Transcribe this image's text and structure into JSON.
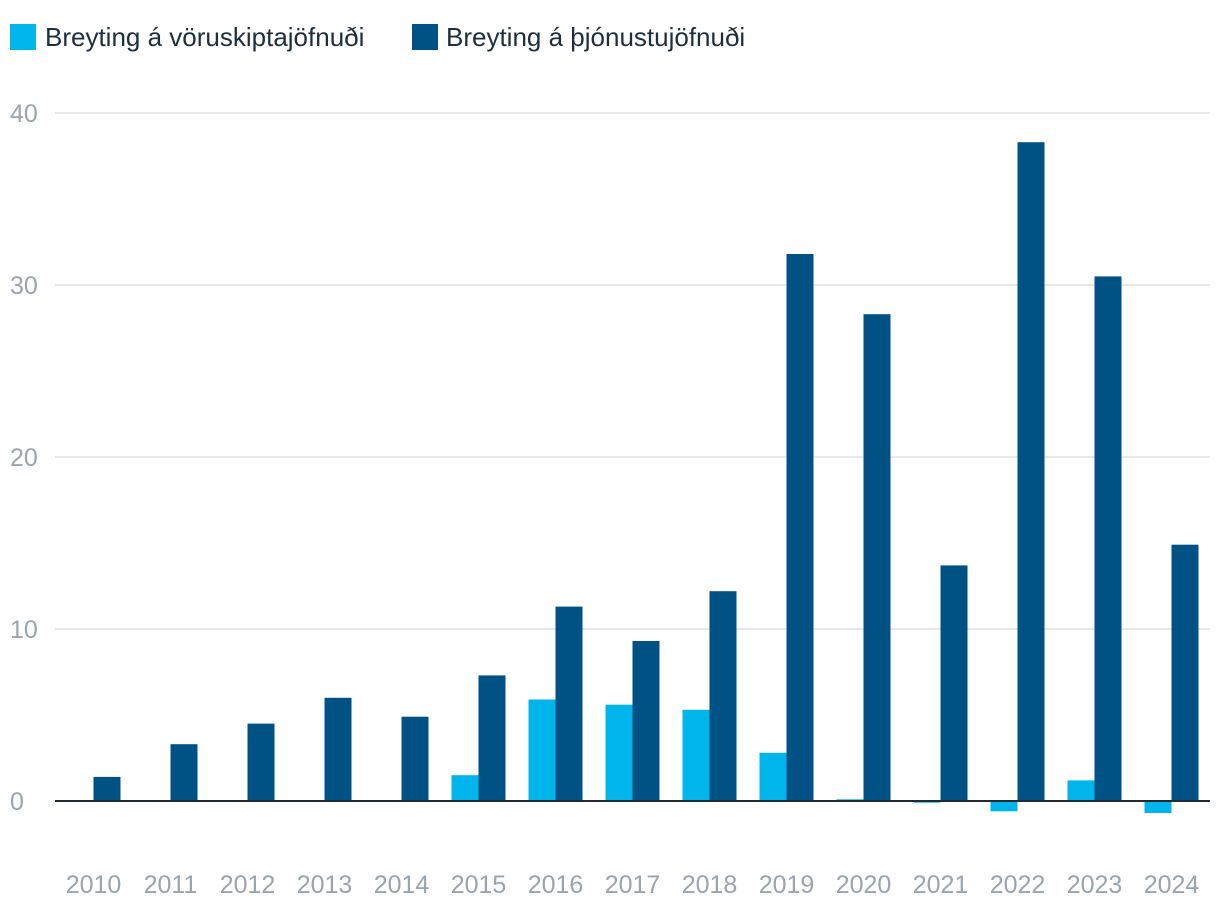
{
  "chart_data": {
    "type": "bar",
    "categories": [
      "2010",
      "2011",
      "2012",
      "2013",
      "2014",
      "2015",
      "2016",
      "2017",
      "2018",
      "2019",
      "2020",
      "2021",
      "2022",
      "2023",
      "2024"
    ],
    "series": [
      {
        "name": "Breyting á vöruskiptajöfnuði",
        "color": "#00b4ec",
        "values": [
          0,
          0,
          0,
          0,
          0,
          1.5,
          5.9,
          5.6,
          5.3,
          2.8,
          0.1,
          -0.1,
          -0.6,
          1.2,
          -0.7
        ]
      },
      {
        "name": "Breyting á þjónustujöfnuði",
        "color": "#005284",
        "values": [
          1.4,
          3.3,
          4.5,
          6.0,
          4.9,
          7.3,
          11.3,
          9.3,
          12.2,
          31.8,
          28.3,
          13.7,
          38.3,
          30.5,
          14.9
        ]
      }
    ],
    "yticks": [
      "0",
      "10",
      "20",
      "30",
      "40"
    ],
    "ylim": [
      0,
      40
    ],
    "grid": true,
    "legend": "top-left"
  }
}
